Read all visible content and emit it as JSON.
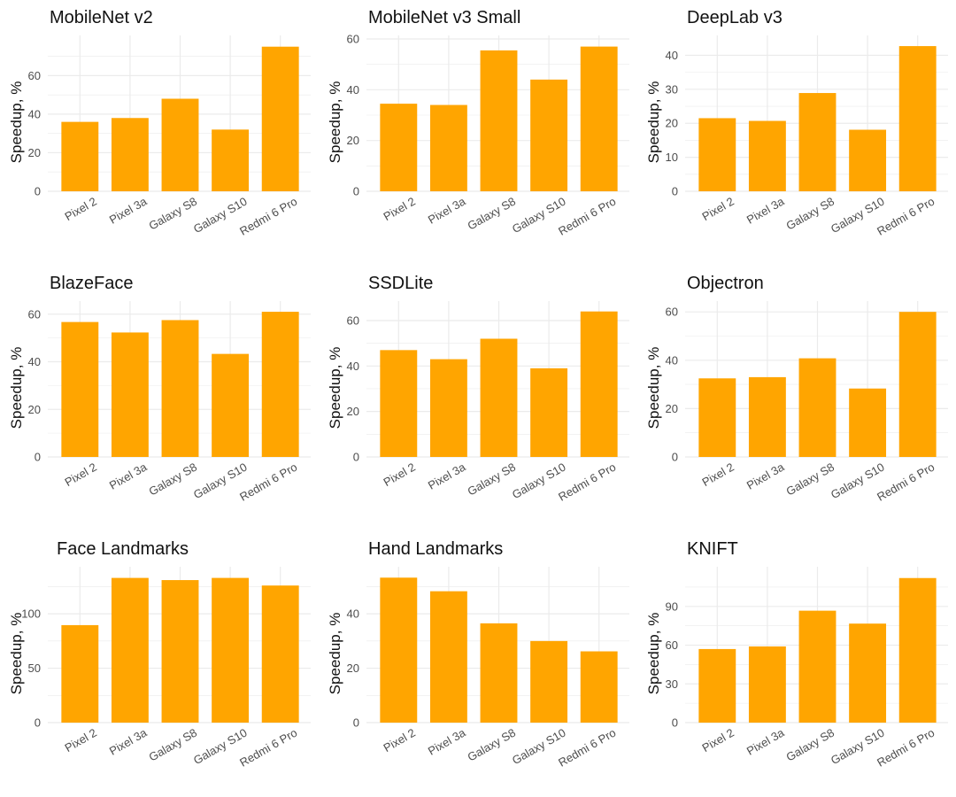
{
  "bar_color": "#FFA500",
  "grid_color": "#EBEBEB",
  "chart_data": [
    {
      "type": "bar",
      "title": "MobileNet v2",
      "xlabel": "",
      "ylabel": "Speedup, %",
      "categories": [
        "Pixel 2",
        "Pixel 3a",
        "Galaxy S8",
        "Galaxy S10",
        "Redmi 6 Pro"
      ],
      "values": [
        36,
        38,
        48,
        32,
        75
      ],
      "yticks": [
        0,
        20,
        40,
        60
      ],
      "ylim": [
        0,
        79
      ],
      "grid": true
    },
    {
      "type": "bar",
      "title": "MobileNet v3 Small",
      "xlabel": "",
      "ylabel": "Speedup, %",
      "categories": [
        "Pixel 2",
        "Pixel 3a",
        "Galaxy S8",
        "Galaxy S10",
        "Redmi 6 Pro"
      ],
      "values": [
        34.5,
        34,
        55.5,
        44,
        57
      ],
      "yticks": [
        0,
        20,
        40,
        60
      ],
      "ylim": [
        0,
        60
      ],
      "grid": true
    },
    {
      "type": "bar",
      "title": "DeepLab v3",
      "xlabel": "",
      "ylabel": "Speedup, %",
      "categories": [
        "Pixel 2",
        "Pixel 3a",
        "Galaxy S8",
        "Galaxy S10",
        "Redmi 6 Pro"
      ],
      "values": [
        21.5,
        20.7,
        28.9,
        18.1,
        42.7
      ],
      "yticks": [
        0,
        10,
        20,
        30,
        40
      ],
      "ylim": [
        0,
        44.8
      ],
      "grid": true
    },
    {
      "type": "bar",
      "title": "BlazeFace",
      "xlabel": "",
      "ylabel": "Speedup, %",
      "categories": [
        "Pixel 2",
        "Pixel 3a",
        "Galaxy S8",
        "Galaxy S10",
        "Redmi 6 Pro"
      ],
      "values": [
        56.7,
        52.3,
        57.5,
        43.3,
        61
      ],
      "yticks": [
        0,
        20,
        40,
        60
      ],
      "ylim": [
        0,
        64
      ],
      "grid": true
    },
    {
      "type": "bar",
      "title": "SSDLite",
      "xlabel": "",
      "ylabel": "Speedup, %",
      "categories": [
        "Pixel 2",
        "Pixel 3a",
        "Galaxy S8",
        "Galaxy S10",
        "Redmi 6 Pro"
      ],
      "values": [
        47,
        43,
        52,
        39,
        64
      ],
      "yticks": [
        0,
        20,
        40,
        60
      ],
      "ylim": [
        0,
        67
      ],
      "grid": true
    },
    {
      "type": "bar",
      "title": "Objectron",
      "xlabel": "",
      "ylabel": "Speedup, %",
      "categories": [
        "Pixel 2",
        "Pixel 3a",
        "Galaxy S8",
        "Galaxy S10",
        "Redmi 6 Pro"
      ],
      "values": [
        32.5,
        33,
        40.8,
        28.3,
        60
      ],
      "yticks": [
        0,
        20,
        40,
        60
      ],
      "ylim": [
        0,
        63
      ],
      "grid": true
    },
    {
      "type": "bar",
      "title": "Face Landmarks",
      "xlabel": "",
      "ylabel": "Speedup, %",
      "categories": [
        "Pixel 2",
        "Pixel 3a",
        "Galaxy S8",
        "Galaxy S10",
        "Redmi 6 Pro"
      ],
      "values": [
        89.6,
        133,
        131,
        133,
        126
      ],
      "yticks": [
        0,
        50,
        100
      ],
      "ylim": [
        0,
        140
      ],
      "grid": true
    },
    {
      "type": "bar",
      "title": "Hand Landmarks",
      "xlabel": "",
      "ylabel": "Speedup, %",
      "categories": [
        "Pixel 2",
        "Pixel 3a",
        "Galaxy S8",
        "Galaxy S10",
        "Redmi 6 Pro"
      ],
      "values": [
        53.3,
        48.3,
        36.5,
        30,
        26.2
      ],
      "yticks": [
        0,
        20,
        40
      ],
      "ylim": [
        0,
        56
      ],
      "grid": true
    },
    {
      "type": "bar",
      "title": "KNIFT",
      "xlabel": "",
      "ylabel": "Speedup, %",
      "categories": [
        "Pixel 2",
        "Pixel 3a",
        "Galaxy S8",
        "Galaxy S10",
        "Redmi 6 Pro"
      ],
      "values": [
        57,
        59,
        86.7,
        76.7,
        112
      ],
      "yticks": [
        0,
        30,
        60,
        90
      ],
      "ylim": [
        0,
        118
      ],
      "grid": true
    }
  ]
}
